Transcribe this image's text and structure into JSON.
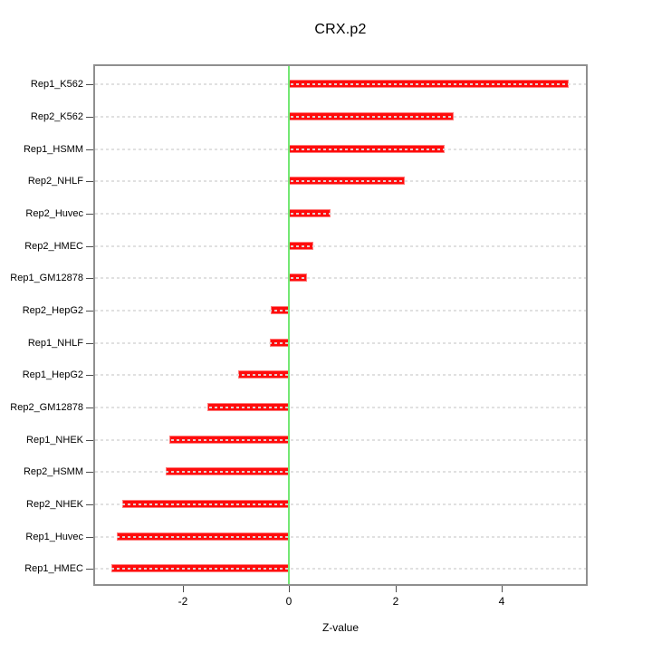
{
  "chart_data": {
    "type": "bar",
    "orientation": "horizontal",
    "title": "CRX.p2",
    "xlabel": "Z-value",
    "ylabel": "",
    "categories": [
      "Rep1_K562",
      "Rep2_K562",
      "Rep1_HSMM",
      "Rep2_NHLF",
      "Rep2_Huvec",
      "Rep2_HMEC",
      "Rep1_GM12878",
      "Rep2_HepG2",
      "Rep1_NHLF",
      "Rep1_HepG2",
      "Rep2_GM12878",
      "Rep1_NHEK",
      "Rep2_HSMM",
      "Rep2_NHEK",
      "Rep1_Huvec",
      "Rep1_HMEC"
    ],
    "values": [
      5.26,
      3.1,
      2.92,
      2.18,
      0.78,
      0.45,
      0.34,
      -0.35,
      -0.36,
      -0.96,
      -1.53,
      -2.25,
      -2.32,
      -3.14,
      -3.23,
      -3.34
    ],
    "xticks": [
      "-2",
      "0",
      "2",
      "4"
    ],
    "xtick_values": [
      -2,
      0,
      2,
      4
    ],
    "xlim": [
      -3.68,
      5.61
    ],
    "refline_x": 0,
    "grid": "dotted horizontal per category",
    "legend_position": "none",
    "colors": {
      "bar": "#ff0c0c",
      "bar_edge": "#ff7a7a",
      "refline": "#74e874",
      "grid": "#dadada",
      "box_border": "#8f8f8f",
      "tick": "#4d4d4d",
      "text": "#000000",
      "background": "#ffffff"
    }
  }
}
